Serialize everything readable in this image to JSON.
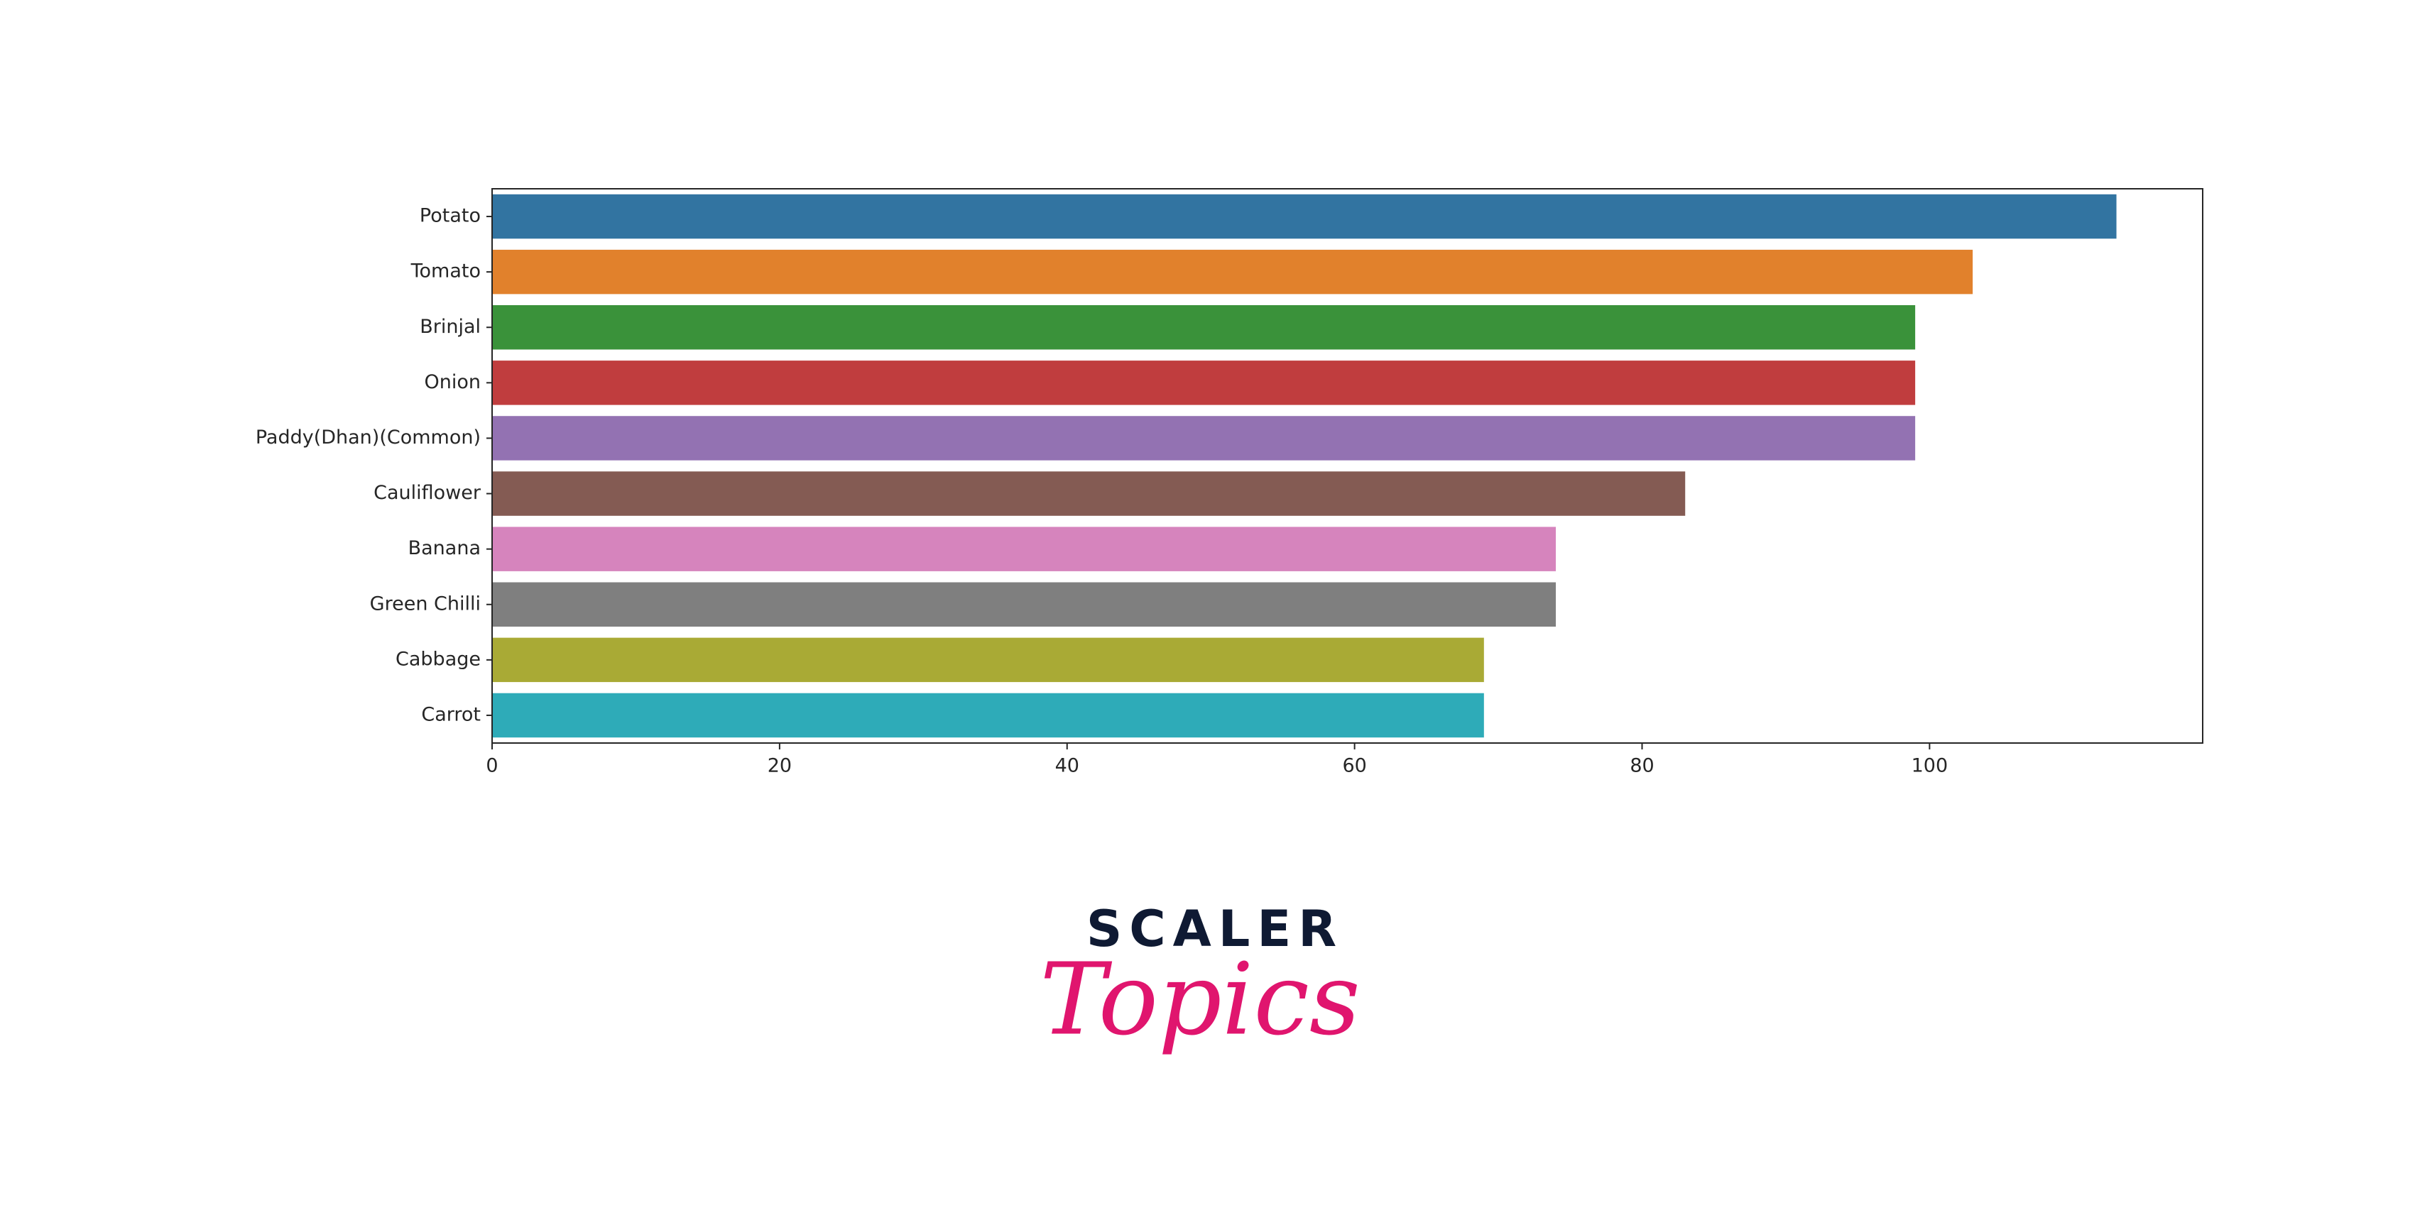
{
  "chart_data": {
    "type": "bar",
    "orientation": "horizontal",
    "categories": [
      "Potato",
      "Tomato",
      "Brinjal",
      "Onion",
      "Paddy(Dhan)(Common)",
      "Cauliflower",
      "Banana",
      "Green Chilli",
      "Cabbage",
      "Carrot"
    ],
    "values": [
      113,
      103,
      99,
      99,
      99,
      83,
      74,
      74,
      69,
      69
    ],
    "colors": [
      "#3274a1",
      "#e1812c",
      "#3a923a",
      "#c03d3e",
      "#9372b2",
      "#845b53",
      "#d684bd",
      "#7f7f7f",
      "#a9aa35",
      "#2eabb8"
    ],
    "xlim": [
      0,
      119
    ],
    "xticks": [
      0,
      20,
      40,
      60,
      80,
      100
    ],
    "grid": false
  },
  "logo": {
    "brand": "SCALER",
    "product": "Topics"
  }
}
